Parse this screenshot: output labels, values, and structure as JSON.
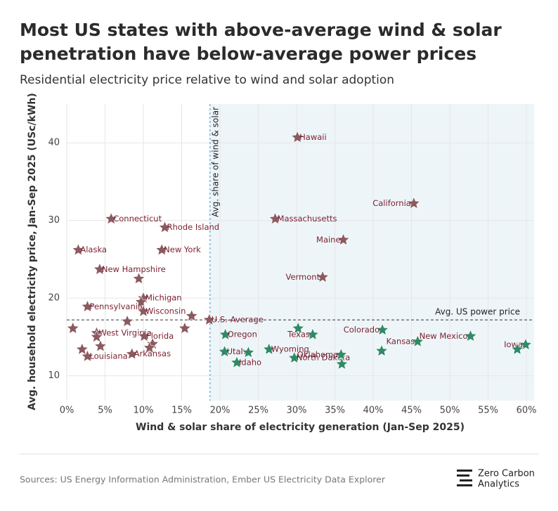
{
  "chart_data": {
    "type": "scatter",
    "title": [
      "Most US states with above-average wind & solar",
      "penetration have below-average power prices"
    ],
    "subtitle": "Residential electricity price relative to wind and solar adoption",
    "xlabel": "Wind & solar share of electricity generation (Jan-Sep 2025)",
    "ylabel": "Avg. household electricity price, Jan-Sep 2025 (USc/kWh)",
    "xlim": [
      0,
      61
    ],
    "ylim": [
      6.8,
      45
    ],
    "xticks": [
      {
        "value": 0,
        "label": "0%"
      },
      {
        "value": 5,
        "label": "5%"
      },
      {
        "value": 10,
        "label": "10%"
      },
      {
        "value": 15,
        "label": "15%"
      },
      {
        "value": 20,
        "label": "20%"
      },
      {
        "value": 25,
        "label": "25%"
      },
      {
        "value": 30,
        "label": "30%"
      },
      {
        "value": 35,
        "label": "35%"
      },
      {
        "value": 40,
        "label": "40%"
      },
      {
        "value": 45,
        "label": "45%"
      },
      {
        "value": 50,
        "label": "50%"
      },
      {
        "value": 55,
        "label": "55%"
      },
      {
        "value": 60,
        "label": "60%"
      }
    ],
    "yticks": [
      10,
      20,
      30,
      40
    ],
    "grid": true,
    "reference_lines": [
      {
        "axis": "x",
        "value": 18.7,
        "label": "Avg. share of wind & solar",
        "color": "#3a8fd6"
      },
      {
        "axis": "y",
        "value": 17.2,
        "label": "Avg. US power price",
        "color": "#333333"
      }
    ],
    "series": [
      {
        "color": "#8a5a5f",
        "labels": [
          "Connecticut",
          "Rhode Island",
          "New York",
          "Alaska",
          "New Hampshire",
          null,
          "Michigan",
          null,
          "Pennsylvania",
          "Wisconsin",
          null,
          null,
          "U.S.-Average",
          null,
          null,
          "West Virginia",
          null,
          "Florida",
          null,
          null,
          null,
          null,
          "Louisiana",
          "Arkansas",
          "Hawaii",
          "California",
          "Massachusetts",
          "Maine",
          "Vermont"
        ],
        "x": [
          5.8,
          12.8,
          12.4,
          1.5,
          4.3,
          9.4,
          10.0,
          9.7,
          2.7,
          10.0,
          7.9,
          16.3,
          18.6,
          0.8,
          15.4,
          3.9,
          3.9,
          10.1,
          4.4,
          2.0,
          11.2,
          10.8,
          2.7,
          8.5,
          30.1,
          45.3,
          27.2,
          36.1,
          33.4
        ],
        "y": [
          30.2,
          29.1,
          26.2,
          26.2,
          23.7,
          22.5,
          20.0,
          19.5,
          18.9,
          18.3,
          17.0,
          17.7,
          17.2,
          16.1,
          16.1,
          15.5,
          15.0,
          15.1,
          13.8,
          13.4,
          14.1,
          13.6,
          12.5,
          12.8,
          40.7,
          32.2,
          30.2,
          27.5,
          22.7
        ]
      },
      {
        "color": "#2f8a66",
        "labels": [
          "Oregon",
          "Utah",
          "Idaho",
          "Wyoming",
          "North Dakota",
          "Texas",
          "Oklahoma",
          "Colorado",
          "Kansas",
          "New Mexico",
          "Iowa",
          null,
          null,
          null,
          null,
          null
        ],
        "x": [
          20.7,
          20.6,
          22.2,
          26.4,
          29.7,
          32.1,
          35.8,
          41.2,
          45.8,
          52.7,
          59.9,
          23.7,
          30.2,
          41.1,
          35.9,
          58.8
        ],
        "y": [
          15.3,
          13.1,
          11.7,
          13.4,
          12.3,
          15.3,
          12.7,
          15.9,
          14.4,
          15.1,
          14.0,
          13.0,
          16.1,
          13.2,
          11.5,
          13.4
        ]
      }
    ]
  },
  "footer": {
    "source": "Sources: US Energy Information Administration, Ember US Electricity Data Explorer",
    "brand": [
      "Zero Carbon",
      "Analytics"
    ]
  }
}
